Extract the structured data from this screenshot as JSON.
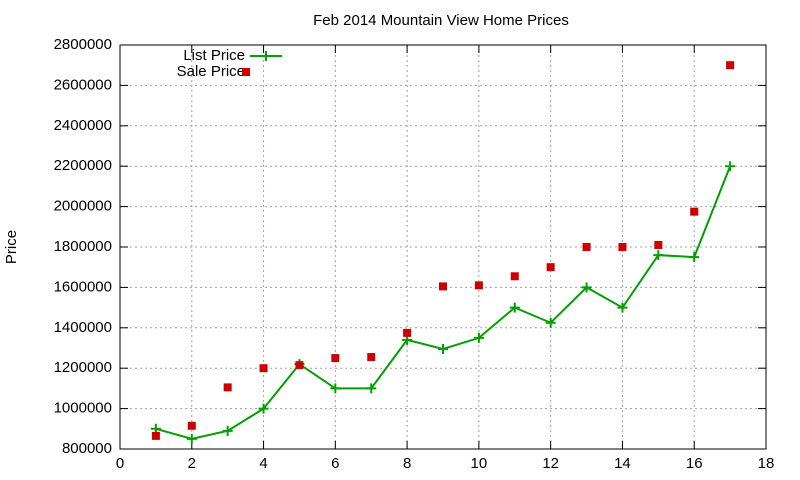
{
  "chart_data": {
    "type": "line",
    "title": "Feb 2014 Mountain View Home Prices",
    "y_label": "Price",
    "x": [
      1,
      2,
      3,
      4,
      5,
      6,
      7,
      8,
      9,
      10,
      11,
      12,
      13,
      14,
      15,
      16,
      17
    ],
    "series": [
      {
        "name": "List Price",
        "color": "#00a000",
        "style": "linespoints",
        "values": [
          900000,
          850000,
          890000,
          1000000,
          1220000,
          1100000,
          1100000,
          1340000,
          1295000,
          1350000,
          1500000,
          1425000,
          1600000,
          1500000,
          1760000,
          1750000,
          2200000
        ]
      },
      {
        "name": "Sale Price",
        "color": "#cc0000",
        "style": "points",
        "values": [
          865000,
          915000,
          1105000,
          1200000,
          1215000,
          1250000,
          1255000,
          1375000,
          1605000,
          1610000,
          1655000,
          1700000,
          1800000,
          1800000,
          1810000,
          1975000,
          2700000
        ]
      }
    ],
    "xlim": [
      0,
      18
    ],
    "xticks": [
      0,
      2,
      4,
      6,
      8,
      10,
      12,
      14,
      16,
      18
    ],
    "ylim": [
      800000,
      2800000
    ],
    "yticks": [
      800000,
      1000000,
      1200000,
      1400000,
      1600000,
      1800000,
      2000000,
      2200000,
      2400000,
      2600000,
      2800000
    ],
    "grid": true,
    "legend": "top-left"
  }
}
